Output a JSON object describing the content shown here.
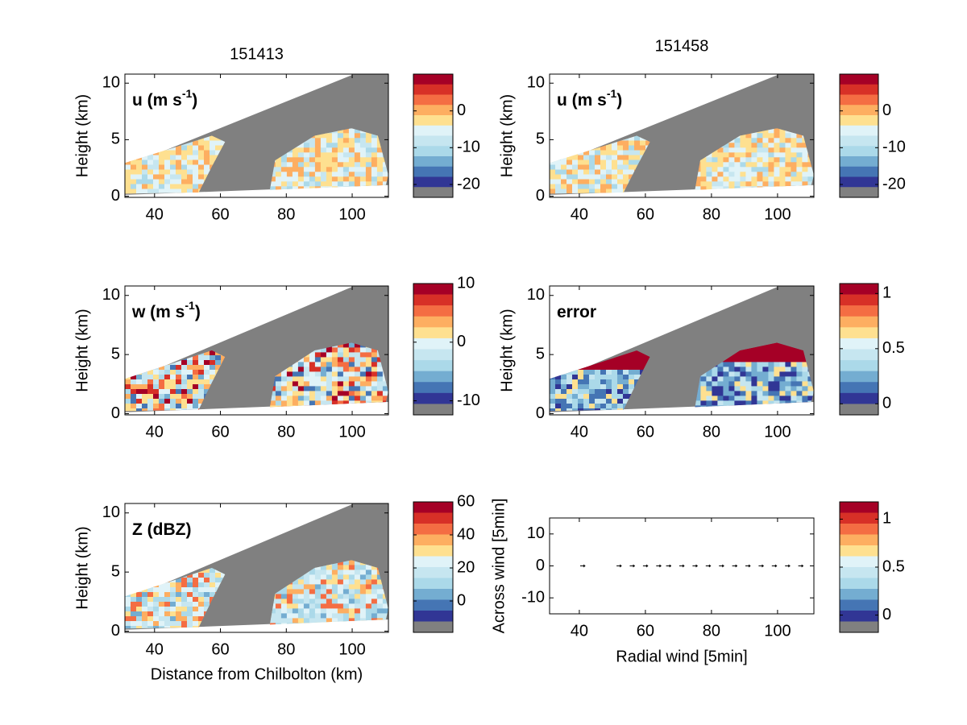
{
  "colormap": [
    "#a50026",
    "#d73027",
    "#f46d43",
    "#fdae61",
    "#fee090",
    "#e0f3f8",
    "#c6e6f0",
    "#abd9e9",
    "#74add1",
    "#4575b4",
    "#313695",
    "#808080"
  ],
  "chart_data": [
    {
      "type": "field",
      "title": "151413",
      "label": "u (m s",
      "label_sup": "-1",
      "label_end": ")",
      "ylabel": "Height (km)",
      "xlim": [
        31,
        111
      ],
      "xticks": [
        40,
        60,
        80,
        100
      ],
      "ylim": [
        -0.1,
        10.8
      ],
      "yticks": [
        0,
        5,
        10
      ],
      "clim": [
        -23.5,
        10
      ],
      "cticks": [
        -20,
        -10,
        0
      ]
    },
    {
      "type": "field",
      "title": "151458",
      "label": "u (m s",
      "label_sup": "-1",
      "label_end": ")",
      "ylabel": "Height (km)",
      "xlim": [
        31,
        111
      ],
      "xticks": [
        40,
        60,
        80,
        100
      ],
      "ylim": [
        -0.1,
        10.8
      ],
      "yticks": [
        0,
        5,
        10
      ],
      "clim": [
        -23.5,
        10
      ],
      "cticks": [
        -20,
        -10,
        0
      ]
    },
    {
      "type": "field",
      "label": "w (m s",
      "label_sup": "-1",
      "label_end": ")",
      "ylabel": "Height (km)",
      "xlim": [
        31,
        111
      ],
      "xticks": [
        40,
        60,
        80,
        100
      ],
      "ylim": [
        -0.1,
        10.8
      ],
      "yticks": [
        0,
        5,
        10
      ],
      "clim": [
        -12.4,
        10
      ],
      "cticks": [
        -10,
        0,
        10
      ]
    },
    {
      "type": "field",
      "label": "error",
      "ylabel": "Height (km)",
      "xlim": [
        31,
        111
      ],
      "xticks": [
        40,
        60,
        80,
        100
      ],
      "ylim": [
        -0.1,
        10.8
      ],
      "yticks": [
        0,
        5,
        10
      ],
      "clim": [
        -0.1,
        1.09
      ],
      "cticks": [
        0,
        0.5,
        1
      ]
    },
    {
      "type": "field",
      "label": "Z (dBZ)",
      "ylabel": "Height (km)",
      "xlabel": "Distance from Chilbolton (km)",
      "xlim": [
        31,
        111
      ],
      "xticks": [
        40,
        60,
        80,
        100
      ],
      "ylim": [
        -0.1,
        10.8
      ],
      "yticks": [
        0,
        5,
        10
      ],
      "clim": [
        -19,
        60
      ],
      "cticks": [
        0,
        20,
        40,
        60
      ]
    },
    {
      "type": "quiver",
      "xlabel": "Radial wind [5min]",
      "ylabel": "Across wind [5min]",
      "xlim": [
        31,
        111
      ],
      "xticks": [
        40,
        60,
        80,
        100
      ],
      "ylim": [
        -15,
        15
      ],
      "yticks": [
        -10,
        0,
        10
      ],
      "x": [
        41,
        52,
        56,
        60,
        64,
        67,
        71,
        75,
        79,
        83,
        87,
        91,
        95,
        99,
        103,
        107
      ],
      "values": [
        0,
        0,
        0,
        0,
        0,
        0,
        0,
        0,
        0,
        0,
        0,
        0,
        0,
        0,
        0,
        0
      ],
      "clim": [
        -0.18,
        1.18
      ],
      "cticks": [
        0,
        0.5,
        1
      ]
    }
  ]
}
